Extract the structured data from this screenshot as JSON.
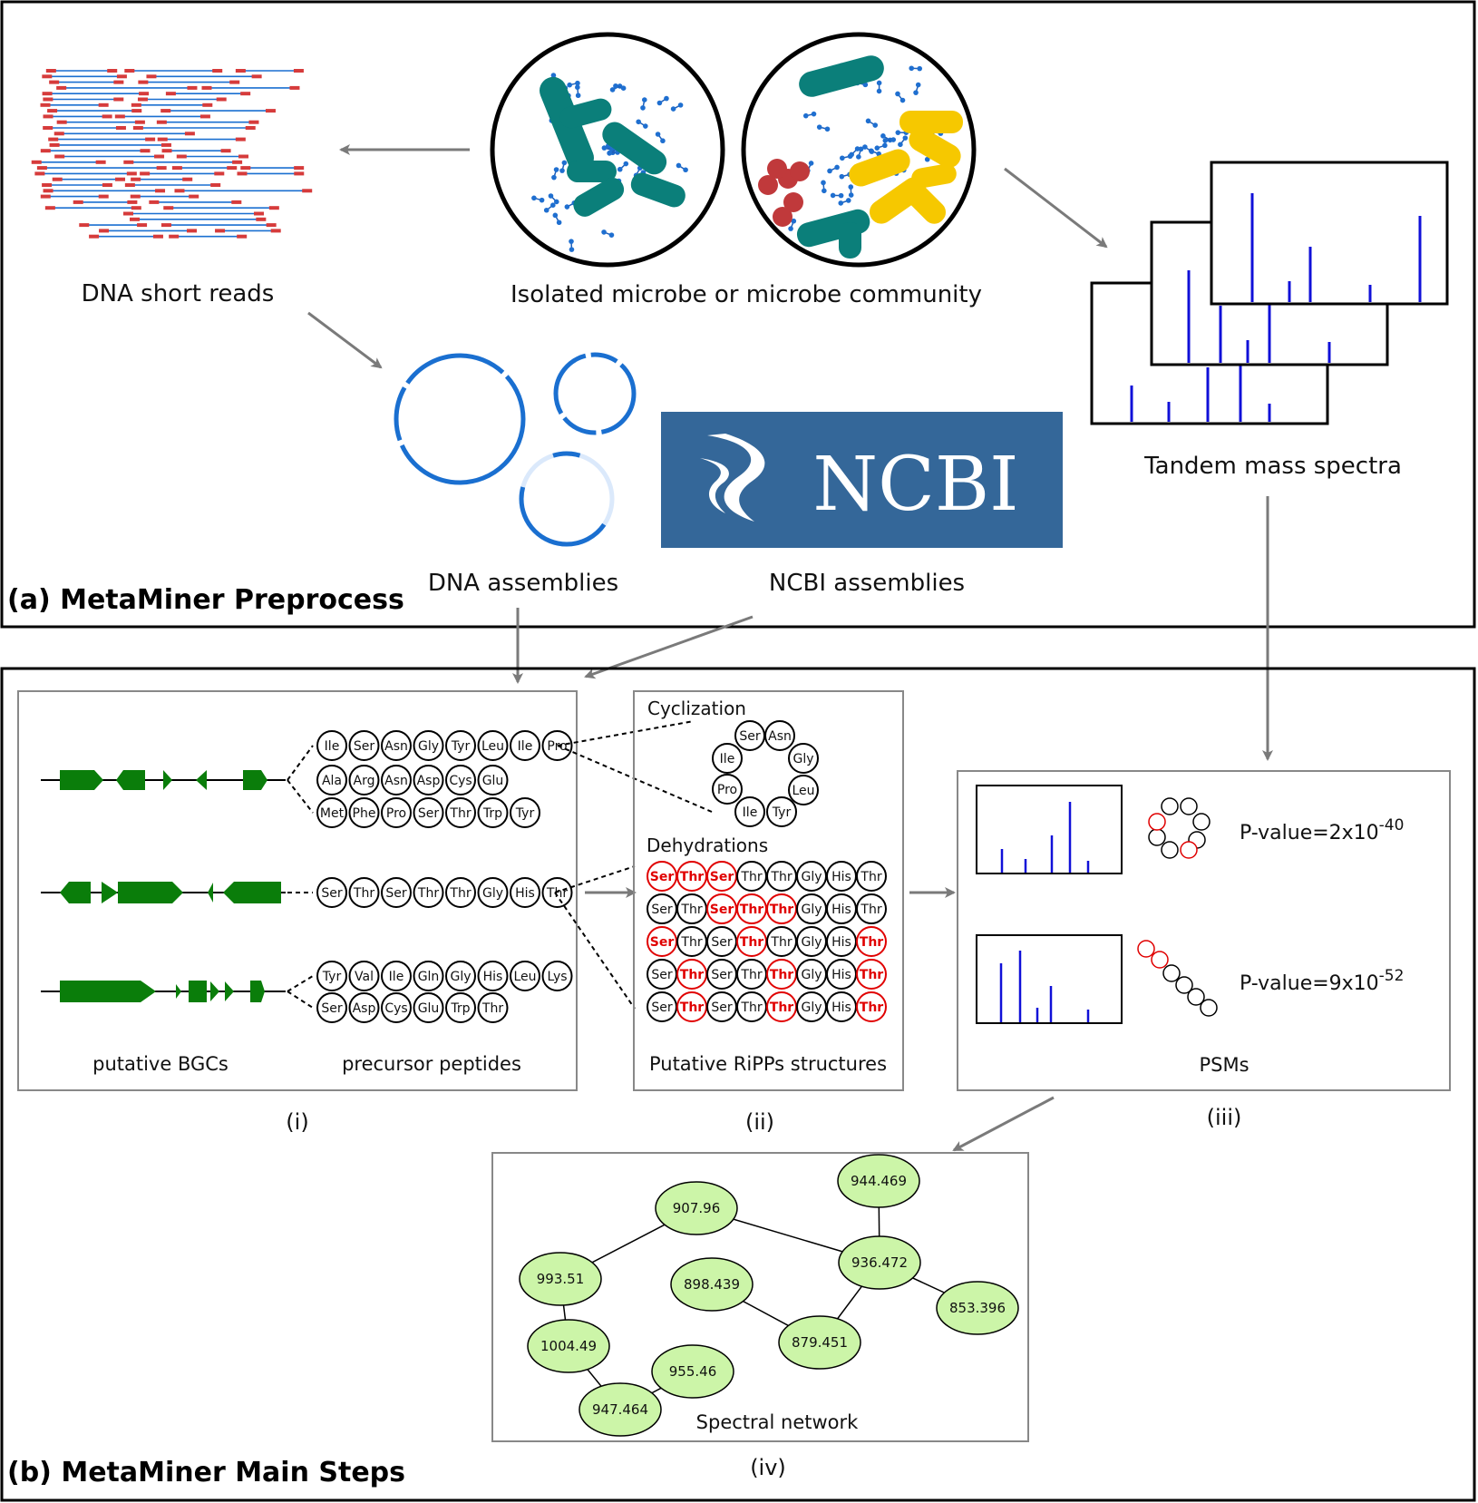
{
  "panel_a": {
    "title": "(a) MetaMiner Preprocess",
    "dna_reads_label": "DNA short reads",
    "microbe_label": "Isolated microbe or microbe community",
    "spectra_label": "Tandem mass spectra",
    "dna_assemblies_label": "DNA assemblies",
    "ncbi_logo_text": "NCBI",
    "ncbi_assemblies_label": "NCBI assemblies"
  },
  "panel_b": {
    "title": "(b) MetaMiner Main Steps",
    "sub_i": {
      "bgc_label": "putative BGCs",
      "peptides_label": "precursor peptides",
      "caption": "(i)",
      "peptide_rows": [
        [
          "Ile",
          "Ser",
          "Asn",
          "Gly",
          "Tyr",
          "Leu",
          "Ile",
          "Pro"
        ],
        [
          "Ala",
          "Arg",
          "Asn",
          "Asp",
          "Cys",
          "Glu"
        ],
        [
          "Met",
          "Phe",
          "Pro",
          "Ser",
          "Thr",
          "Trp",
          "Tyr"
        ],
        [
          "Ser",
          "Thr",
          "Ser",
          "Thr",
          "Thr",
          "Gly",
          "His",
          "Thr"
        ],
        [
          "Tyr",
          "Val",
          "Ile",
          "Gln",
          "Gly",
          "His",
          "Leu",
          "Lys"
        ],
        [
          "Ser",
          "Asp",
          "Cys",
          "Glu",
          "Trp",
          "Thr"
        ]
      ]
    },
    "sub_ii": {
      "cyclization_label": "Cyclization",
      "cyclic_residues": [
        "Ser",
        "Asn",
        "Gly",
        "Leu",
        "Tyr",
        "Ile",
        "Pro",
        "Ile"
      ],
      "dehydrations_label": "Dehydrations",
      "dehydration_rows": [
        [
          "Ser",
          "Thr",
          "Ser",
          "Thr",
          "Thr",
          "Gly",
          "His",
          "Thr"
        ],
        [
          "Ser",
          "Thr",
          "Ser",
          "Thr",
          "Thr",
          "Gly",
          "His",
          "Thr"
        ],
        [
          "Ser",
          "Thr",
          "Ser",
          "Thr",
          "Thr",
          "Gly",
          "His",
          "Thr"
        ],
        [
          "Ser",
          "Thr",
          "Ser",
          "Thr",
          "Thr",
          "Gly",
          "His",
          "Thr"
        ],
        [
          "Ser",
          "Thr",
          "Ser",
          "Thr",
          "Thr",
          "Gly",
          "His",
          "Thr"
        ]
      ],
      "dehydrated_flags": [
        [
          1,
          1,
          1,
          0,
          0,
          0,
          0,
          0
        ],
        [
          0,
          0,
          1,
          1,
          1,
          0,
          0,
          0
        ],
        [
          1,
          0,
          0,
          1,
          0,
          0,
          0,
          1
        ],
        [
          0,
          1,
          0,
          0,
          1,
          0,
          0,
          1
        ],
        [
          0,
          1,
          0,
          0,
          1,
          0,
          0,
          1
        ]
      ],
      "caption_label": "Putative RiPPs structures",
      "caption": "(ii)"
    },
    "sub_iii": {
      "psm1_pvalue": "P-value=2x10",
      "psm1_exp": "-40",
      "psm2_pvalue": "P-value=9x10",
      "psm2_exp": "-52",
      "label": "PSMs",
      "caption": "(iii)"
    },
    "sub_iv": {
      "network_label": "Spectral network",
      "caption": "(iv)",
      "nodes": [
        "907.96",
        "944.469",
        "993.51",
        "936.472",
        "898.439",
        "853.396",
        "1004.49",
        "879.451",
        "955.46",
        "947.464"
      ]
    }
  },
  "colors": {
    "gene_green": "#0a7d0a",
    "dna_blue": "#1a6fd0",
    "read_red": "#d63b3b",
    "spectrum_blue": "#1010d8",
    "ncbi_bg": "#346799",
    "node_fill": "#ccf5a8",
    "teal": "#0b7f7a",
    "yellow": "#f6c800",
    "dehydration_red": "#e00000"
  }
}
